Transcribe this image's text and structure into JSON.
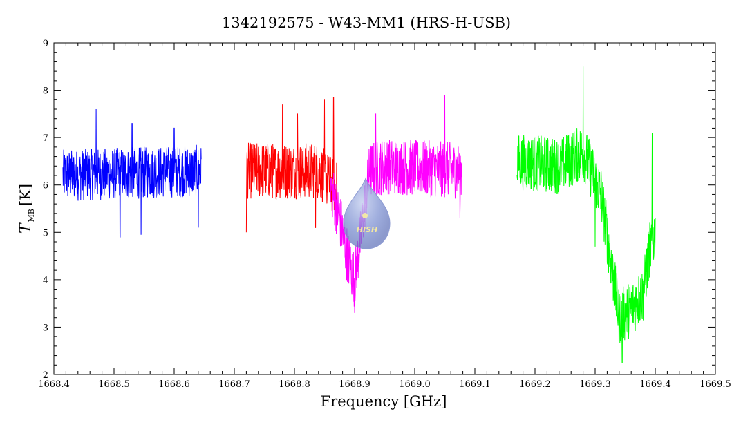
{
  "chart_data": {
    "type": "line",
    "title": "1342192575 - W43-MM1 (HRS-H-USB)",
    "xlabel": "Frequency [GHz]",
    "ylabel": "T",
    "ylabel_sub": "MB",
    "ylabel_unit": "[K]",
    "xlim": [
      1668.4,
      1669.5
    ],
    "ylim": [
      2,
      9
    ],
    "xticks": [
      "1668.4",
      "1668.5",
      "1668.6",
      "1668.7",
      "1668.8",
      "1668.9",
      "1669.0",
      "1669.1",
      "1669.2",
      "1669.3",
      "1669.4",
      "1669.5"
    ],
    "yticks": [
      "2",
      "3",
      "4",
      "5",
      "6",
      "7",
      "8",
      "9"
    ],
    "grid": false,
    "series": [
      {
        "color": "#0000ff",
        "x_range": [
          1668.415,
          1668.645
        ],
        "points": [
          [
            1668.415,
            6.2
          ],
          [
            1668.64,
            6.3
          ]
        ],
        "noise": 0.55,
        "spikes": [
          [
            1668.47,
            7.6
          ],
          [
            1668.51,
            4.9
          ],
          [
            1668.53,
            7.3
          ],
          [
            1668.545,
            4.95
          ],
          [
            1668.6,
            7.2
          ],
          [
            1668.64,
            5.1
          ]
        ]
      },
      {
        "color": "#ff0000",
        "x_range": [
          1668.72,
          1668.87
        ],
        "points": [
          [
            1668.72,
            6.3
          ],
          [
            1668.84,
            6.3
          ],
          [
            1668.87,
            5.9
          ]
        ],
        "noise": 0.6,
        "spikes": [
          [
            1668.72,
            5.0
          ],
          [
            1668.78,
            7.7
          ],
          [
            1668.805,
            7.5
          ],
          [
            1668.835,
            5.1
          ],
          [
            1668.85,
            7.8
          ],
          [
            1668.865,
            7.85
          ]
        ]
      },
      {
        "color": "#ff00ff",
        "x_range": [
          1668.86,
          1669.078
        ],
        "points": [
          [
            1668.86,
            6.0
          ],
          [
            1668.875,
            5.3
          ],
          [
            1668.89,
            4.4
          ],
          [
            1668.9,
            4.0
          ],
          [
            1668.91,
            4.9
          ],
          [
            1668.925,
            6.3
          ],
          [
            1668.95,
            6.4
          ],
          [
            1669.078,
            6.3
          ]
        ],
        "noise": 0.6,
        "spikes": [
          [
            1668.9,
            3.3
          ],
          [
            1668.935,
            7.5
          ],
          [
            1669.05,
            7.9
          ],
          [
            1669.075,
            5.3
          ]
        ]
      },
      {
        "color": "#00ff00",
        "x_range": [
          1669.17,
          1669.4
        ],
        "points": [
          [
            1669.17,
            6.5
          ],
          [
            1669.24,
            6.4
          ],
          [
            1669.28,
            6.7
          ],
          [
            1669.31,
            5.8
          ],
          [
            1669.325,
            4.5
          ],
          [
            1669.34,
            3.2
          ],
          [
            1669.36,
            3.4
          ],
          [
            1669.38,
            3.7
          ],
          [
            1669.39,
            4.6
          ],
          [
            1669.4,
            5.0
          ]
        ],
        "noise": 0.6,
        "spikes": [
          [
            1669.28,
            8.5
          ],
          [
            1669.3,
            4.7
          ],
          [
            1669.345,
            2.25
          ],
          [
            1669.395,
            7.1
          ]
        ]
      }
    ]
  },
  "watermark": {
    "text": "HISH",
    "color": "#6f83c8"
  }
}
